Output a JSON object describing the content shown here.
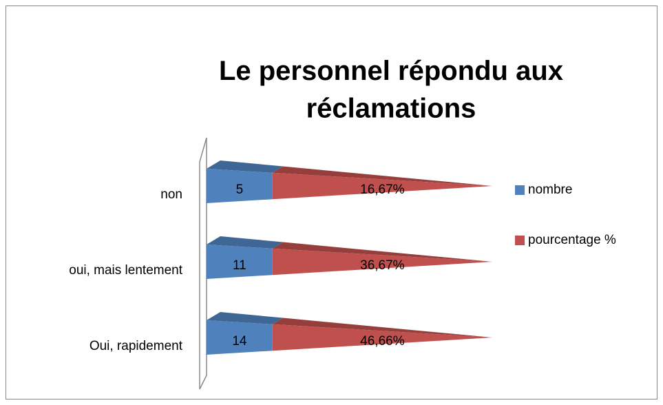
{
  "chart_data": {
    "type": "bar",
    "stacked": "percent",
    "shape": "pyramid",
    "title": "Le personnel répondu aux réclamations",
    "categories": [
      "non",
      "oui, mais lentement",
      "Oui, rapidement"
    ],
    "series": [
      {
        "name": "nombre",
        "color": "#4f81bd",
        "values": [
          5,
          11,
          14
        ]
      },
      {
        "name": "pourcentage %",
        "color": "#c0504d",
        "values": [
          16.67,
          36.67,
          46.66
        ],
        "value_labels": [
          "16,67%",
          "36,67%",
          "46,66%"
        ]
      }
    ],
    "legend": "right"
  }
}
